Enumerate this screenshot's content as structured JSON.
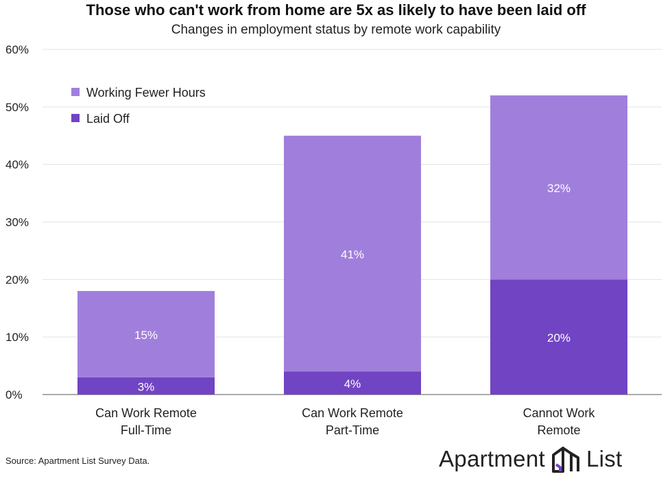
{
  "title": "Those who can't work from home are 5x as likely to have been laid off",
  "subtitle": "Changes in employment status by remote work capability",
  "source": "Source: Apartment List Survey Data.",
  "logo": {
    "word1": "Apartment",
    "word2": "List",
    "icon": "building-logo-icon"
  },
  "colors": {
    "fewer_hours": "#a07fdc",
    "laid_off": "#7144c3",
    "grid": "#e3e3e3",
    "axis": "#555555"
  },
  "chart_data": {
    "type": "bar",
    "stacked": true,
    "categories": [
      [
        "Can Work Remote",
        "Full-Time"
      ],
      [
        "Can Work Remote",
        "Part-Time"
      ],
      [
        "Cannot Work",
        "Remote"
      ]
    ],
    "series": [
      {
        "name": "Laid Off",
        "values": [
          3,
          4,
          20
        ],
        "labels": [
          "3%",
          "4%",
          "20%"
        ],
        "color": "#7144c3"
      },
      {
        "name": "Working Fewer Hours",
        "values": [
          15,
          41,
          32
        ],
        "labels": [
          "15%",
          "41%",
          "32%"
        ],
        "color": "#a07fdc"
      }
    ],
    "legend_order": [
      "Working Fewer Hours",
      "Laid Off"
    ],
    "legend_position": "top-left",
    "ylim": [
      0,
      60
    ],
    "yticks": [
      0,
      10,
      20,
      30,
      40,
      50,
      60
    ],
    "ytick_labels": [
      "0%",
      "10%",
      "20%",
      "30%",
      "40%",
      "50%",
      "60%"
    ],
    "grid": true
  }
}
